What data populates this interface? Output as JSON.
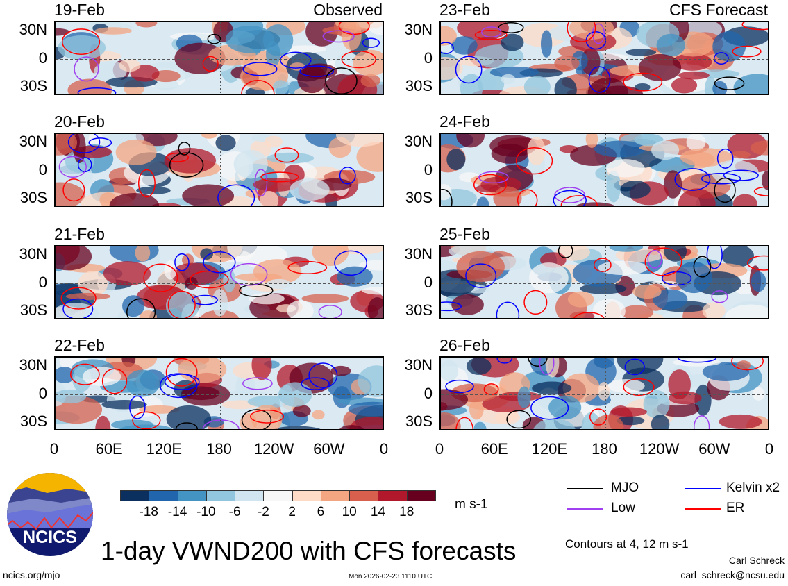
{
  "chart_data": {
    "type": "heatmap",
    "title": "1-day VWND200 with CFS forecasts",
    "units": "m s-1",
    "panels": [
      {
        "date": "19-Feb",
        "tag": "Observed"
      },
      {
        "date": "20-Feb",
        "tag": ""
      },
      {
        "date": "21-Feb",
        "tag": ""
      },
      {
        "date": "22-Feb",
        "tag": ""
      },
      {
        "date": "23-Feb",
        "tag": "CFS Forecast"
      },
      {
        "date": "24-Feb",
        "tag": ""
      },
      {
        "date": "25-Feb",
        "tag": ""
      },
      {
        "date": "26-Feb",
        "tag": ""
      }
    ],
    "y_ticks": [
      "30N",
      "0",
      "30S"
    ],
    "x_ticks": [
      "0",
      "60E",
      "120E",
      "180",
      "120W",
      "60W",
      "0"
    ],
    "lat_range": [
      -40,
      40
    ],
    "lon_range": [
      0,
      360
    ],
    "colorbar": {
      "labels": [
        "-18",
        "-14",
        "-10",
        "-6",
        "-2",
        "2",
        "6",
        "10",
        "14",
        "18"
      ],
      "colors": [
        "#0b2f5e",
        "#2166ac",
        "#4393c3",
        "#92c5de",
        "#d1e5f0",
        "#f7f7f7",
        "#fddbc7",
        "#f4a582",
        "#d6604d",
        "#b2182b",
        "#67001f"
      ]
    },
    "legend": [
      {
        "label": "MJO",
        "color": "#000000"
      },
      {
        "label": "Kelvin x2",
        "color": "#0000ff"
      },
      {
        "label": "Low",
        "color": "#a040f0"
      },
      {
        "label": "ER",
        "color": "#ff0000"
      }
    ],
    "contour_note": "Contours at 4, 12 m s-1"
  },
  "logo": {
    "text": "NCICS"
  },
  "footer": {
    "url": "ncics.org/mjo",
    "timestamp": "Mon 2026-02-23 1110 UTC",
    "author": "Carl Schreck",
    "email": "carl_schreck@ncsu.edu"
  }
}
